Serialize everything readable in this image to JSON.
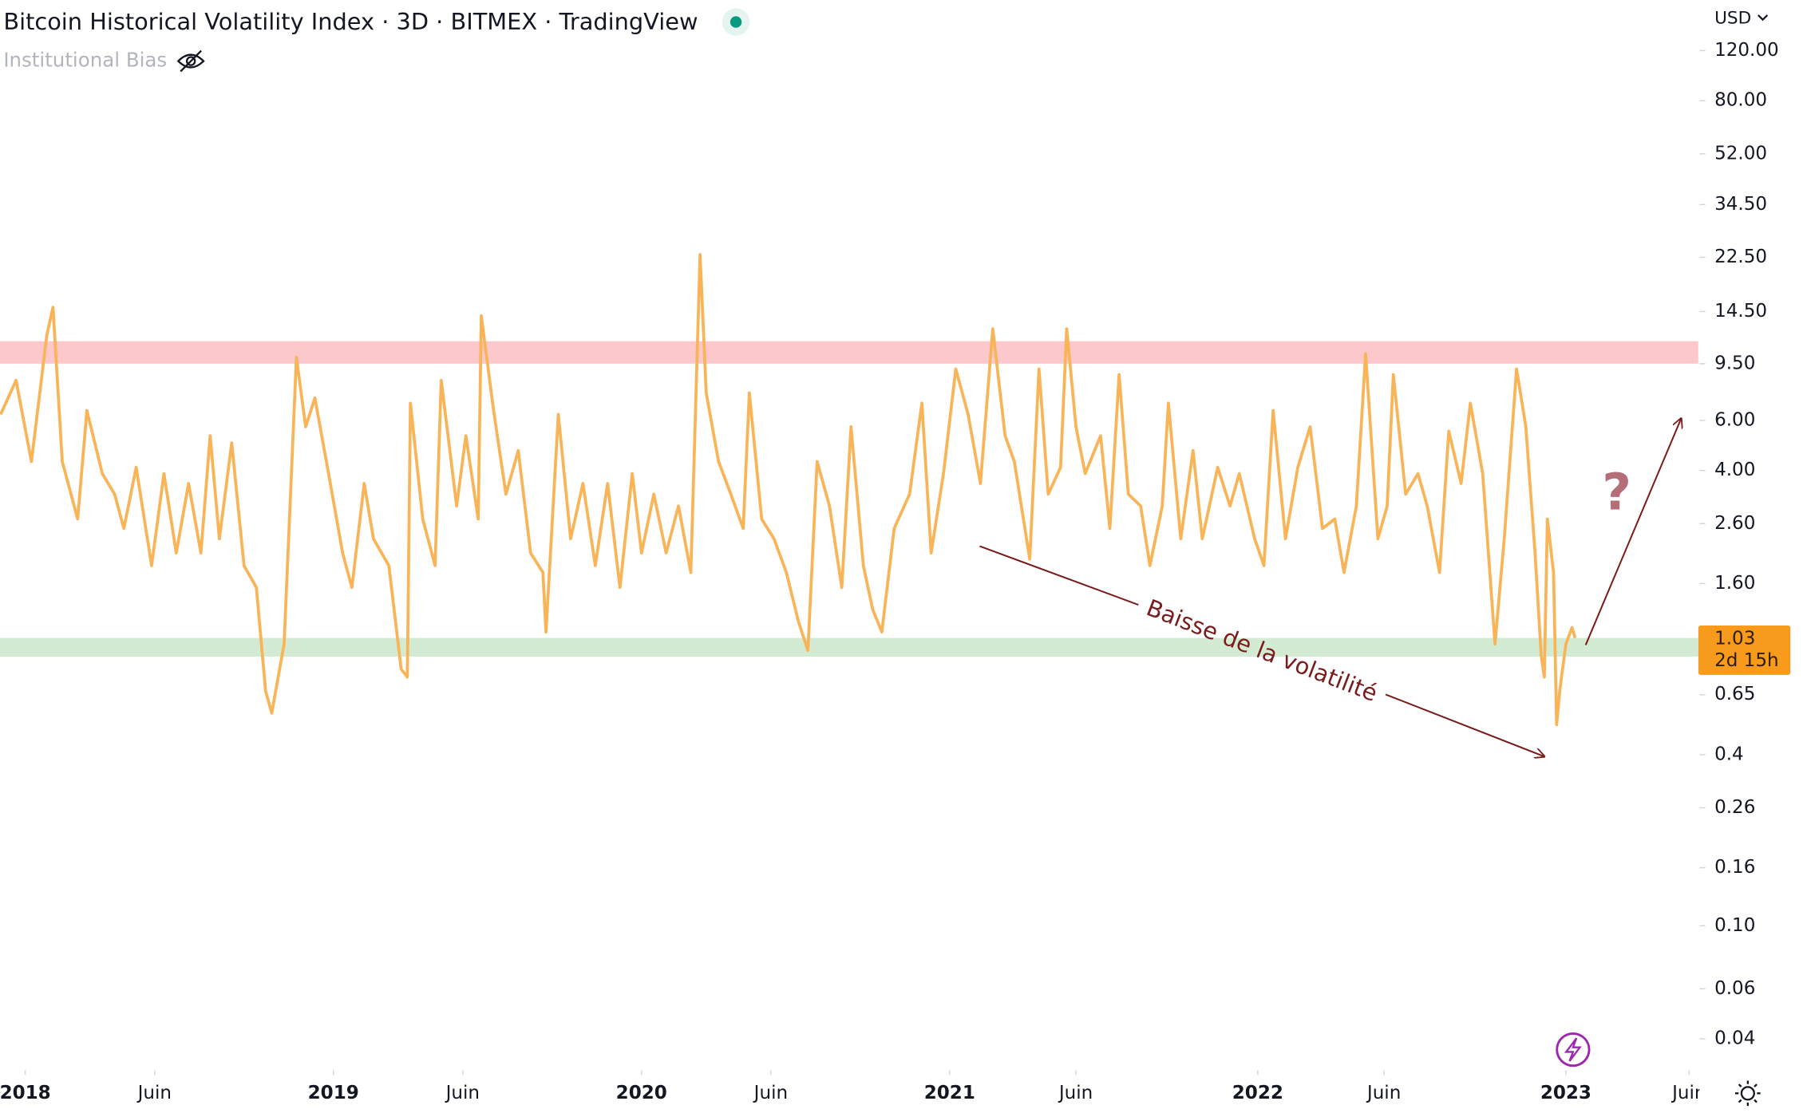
{
  "chart_data": {
    "type": "line",
    "title": "Bitcoin Historical Volatility Index · 3D · BITMEX · TradingView",
    "indicator": "Institutional Bias",
    "currency": "USD",
    "last_value": 1.03,
    "countdown": "2d 15h",
    "annotations": [
      "Baisse de la volatilité",
      "?"
    ],
    "color": "#f9b458",
    "log_scale": true,
    "grid": false,
    "xlim": [
      2017.918,
      2023.43
    ],
    "ylim": [
      0.031,
      179
    ],
    "xticks": [
      {
        "value": 2018.0,
        "label": "2018"
      },
      {
        "value": 2018.42,
        "label": "Juin"
      },
      {
        "value": 2019.0,
        "label": "2019"
      },
      {
        "value": 2019.42,
        "label": "Juin"
      },
      {
        "value": 2020.0,
        "label": "2020"
      },
      {
        "value": 2020.42,
        "label": "Juin"
      },
      {
        "value": 2021.0,
        "label": "2021"
      },
      {
        "value": 2021.41,
        "label": "Juin"
      },
      {
        "value": 2022.0,
        "label": "2022"
      },
      {
        "value": 2022.41,
        "label": "Juin"
      },
      {
        "value": 2023.0,
        "label": "2023"
      },
      {
        "value": 2023.4,
        "label": "Juin"
      }
    ],
    "yticks": [
      {
        "value": 120,
        "label": "120.00"
      },
      {
        "value": 80,
        "label": "80.00"
      },
      {
        "value": 52,
        "label": "52.00"
      },
      {
        "value": 34.5,
        "label": "34.50"
      },
      {
        "value": 22.5,
        "label": "22.50"
      },
      {
        "value": 14.5,
        "label": "14.50"
      },
      {
        "value": 9.5,
        "label": "9.50"
      },
      {
        "value": 6,
        "label": "6.00"
      },
      {
        "value": 4,
        "label": "4.00"
      },
      {
        "value": 2.6,
        "label": "2.60"
      },
      {
        "value": 1.6,
        "label": "1.60"
      },
      0.65,
      0.4,
      0.26,
      0.16,
      {
        "value": 0.1,
        "label": "0.10"
      },
      0.06,
      0.04
    ],
    "bands": [
      {
        "from": 9.5,
        "to": 11.4,
        "color": "#fdc8cc"
      },
      {
        "from": 0.885,
        "to": 1.03,
        "color": "#d3ebd3"
      }
    ],
    "x": [
      2017.92,
      2017.97,
      2018.02,
      2018.07,
      2018.09,
      2018.12,
      2018.17,
      2018.2,
      2018.25,
      2018.29,
      2018.32,
      2018.36,
      2018.41,
      2018.45,
      2018.49,
      2018.53,
      2018.57,
      2018.6,
      2018.63,
      2018.67,
      2018.71,
      2018.75,
      2018.78,
      2018.8,
      2018.84,
      2018.88,
      2018.91,
      2018.94,
      2018.99,
      2019.03,
      2019.06,
      2019.1,
      2019.13,
      2019.18,
      2019.22,
      2019.24,
      2019.25,
      2019.29,
      2019.33,
      2019.35,
      2019.4,
      2019.43,
      2019.47,
      2019.48,
      2019.52,
      2019.56,
      2019.6,
      2019.64,
      2019.68,
      2019.69,
      2019.73,
      2019.77,
      2019.81,
      2019.85,
      2019.89,
      2019.93,
      2019.97,
      2020.0,
      2020.04,
      2020.08,
      2020.12,
      2020.16,
      2020.19,
      2020.21,
      2020.25,
      2020.29,
      2020.33,
      2020.35,
      2020.39,
      2020.43,
      2020.47,
      2020.51,
      2020.54,
      2020.57,
      2020.61,
      2020.65,
      2020.68,
      2020.72,
      2020.75,
      2020.78,
      2020.82,
      2020.87,
      2020.91,
      2020.94,
      2020.98,
      2021.02,
      2021.06,
      2021.1,
      2021.14,
      2021.18,
      2021.21,
      2021.26,
      2021.29,
      2021.32,
      2021.36,
      2021.38,
      2021.41,
      2021.44,
      2021.49,
      2021.52,
      2021.55,
      2021.58,
      2021.62,
      2021.65,
      2021.69,
      2021.71,
      2021.75,
      2021.79,
      2021.82,
      2021.87,
      2021.91,
      2021.94,
      2021.99,
      2022.02,
      2022.05,
      2022.09,
      2022.13,
      2022.17,
      2022.21,
      2022.25,
      2022.28,
      2022.32,
      2022.35,
      2022.39,
      2022.42,
      2022.44,
      2022.48,
      2022.52,
      2022.55,
      2022.59,
      2022.62,
      2022.66,
      2022.69,
      2022.73,
      2022.77,
      2022.8,
      2022.84,
      2022.87,
      2022.9,
      2022.92,
      2022.93,
      2022.94,
      2022.96,
      2022.97,
      2022.98,
      2023.0,
      2023.02,
      2023.03
    ],
    "values": [
      6.3,
      8.3,
      4.3,
      12,
      15,
      4.3,
      2.7,
      6.5,
      3.9,
      3.3,
      2.5,
      4.1,
      1.85,
      3.9,
      2.05,
      3.6,
      2.05,
      5.3,
      2.3,
      5,
      1.85,
      1.55,
      0.67,
      0.56,
      0.98,
      10,
      5.7,
      7.2,
      3.6,
      2.05,
      1.55,
      3.6,
      2.3,
      1.85,
      0.8,
      0.75,
      6.9,
      2.7,
      1.85,
      8.3,
      3,
      5.3,
      2.7,
      14,
      6.5,
      3.3,
      4.7,
      2.05,
      1.75,
      1.08,
      6.3,
      2.3,
      3.6,
      1.85,
      3.6,
      1.55,
      3.9,
      2.05,
      3.3,
      2.05,
      3,
      1.75,
      23,
      7.5,
      4.3,
      3.3,
      2.5,
      7.5,
      2.7,
      2.3,
      1.75,
      1.17,
      0.93,
      4.3,
      3,
      1.55,
      5.7,
      1.85,
      1.3,
      1.08,
      2.5,
      3.3,
      6.9,
      2.05,
      3.9,
      9.1,
      6.3,
      3.6,
      12.6,
      5.3,
      4.3,
      1.95,
      9.1,
      3.3,
      4.1,
      12.6,
      5.7,
      3.9,
      5.3,
      2.5,
      8.7,
      3.3,
      3,
      1.85,
      3,
      6.9,
      2.3,
      4.7,
      2.3,
      4.1,
      3,
      3.9,
      2.3,
      1.85,
      6.5,
      2.3,
      4.1,
      5.7,
      2.5,
      2.7,
      1.75,
      3,
      10.3,
      2.3,
      3,
      8.7,
      3.3,
      3.9,
      3,
      1.75,
      5.5,
      3.6,
      6.9,
      3.9,
      0.98,
      2.3,
      9.1,
      5.7,
      2.05,
      0.89,
      0.75,
      2.7,
      1.75,
      0.51,
      0.67,
      0.98,
      1.12,
      1.03
    ]
  }
}
